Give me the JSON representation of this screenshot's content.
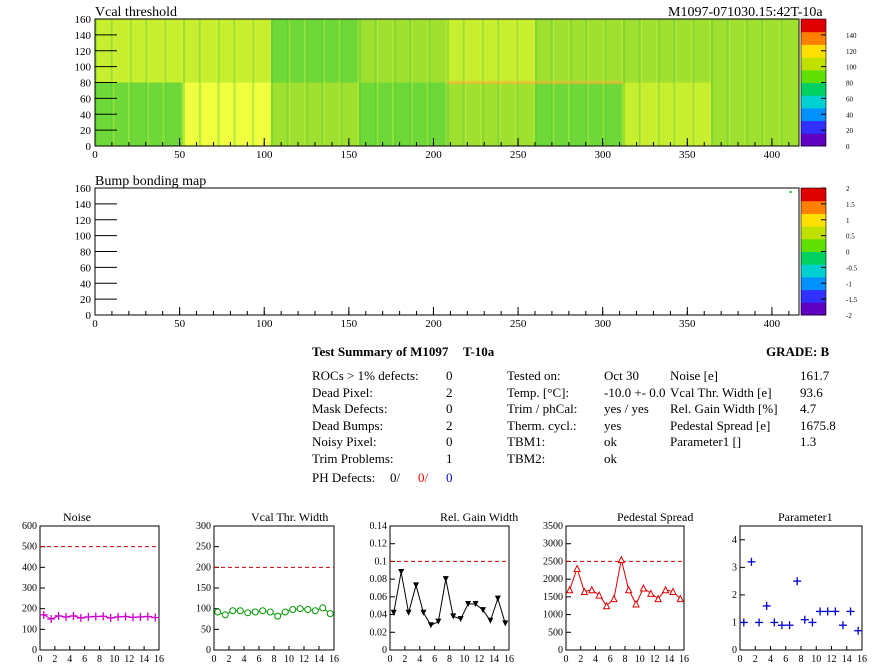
{
  "header": {
    "vcal_title": "Vcal threshold",
    "module_id": "M1097-071030.15:42T-10a",
    "bump_title": "Bump bonding map"
  },
  "colors": {
    "red": "#ff0000",
    "blue": "#0000cc",
    "noise": "#cc00cc",
    "vcal": "#009900",
    "gain": "#000000",
    "pedestal": "#dd0000",
    "param": "#0000cc",
    "ref_line": "#cc0000"
  },
  "summary": {
    "title": "Test Summary of M1097",
    "temp_label": "T-10a",
    "grade": "GRADE:  B",
    "left": [
      {
        "label": "ROCs > 1% defects:",
        "value": "0"
      },
      {
        "label": "Dead Pixel:",
        "value": "2"
      },
      {
        "label": "Mask Defects:",
        "value": "0"
      },
      {
        "label": "Dead Bumps:",
        "value": "2"
      },
      {
        "label": "Noisy Pixel:",
        "value": "0"
      },
      {
        "label": "Trim Problems:",
        "value": "1"
      }
    ],
    "ph_label": "PH Defects:",
    "ph_values": [
      "0/",
      "0/",
      "0"
    ],
    "middle": [
      {
        "label": "Tested on:",
        "value": "Oct 30"
      },
      {
        "label": "Temp. [°C]:",
        "value": "-10.0 +- 0.0"
      },
      {
        "label": "Trim / phCal:",
        "value": "yes / yes"
      },
      {
        "label": "Therm. cycl.:",
        "value": "yes"
      },
      {
        "label": "TBM1:",
        "value": "ok"
      },
      {
        "label": "TBM2:",
        "value": "ok"
      }
    ],
    "right": [
      {
        "label": "Noise [e]",
        "value": "161.7"
      },
      {
        "label": "Vcal Thr. Width [e]",
        "value": "93.6"
      },
      {
        "label": "Rel. Gain Width [%]",
        "value": "4.7"
      },
      {
        "label": "Pedestal Spread [e]",
        "value": "1675.8"
      },
      {
        "label": "Parameter1 []",
        "value": "1.3"
      }
    ]
  },
  "chart_data": [
    {
      "type": "heatmap",
      "title": "Vcal threshold",
      "xlim": [
        0,
        416
      ],
      "ylim": [
        0,
        160
      ],
      "xticks": [
        "0",
        "50",
        "100",
        "150",
        "200",
        "250",
        "300",
        "350",
        "400"
      ],
      "yticks": [
        "0",
        "20",
        "40",
        "60",
        "80",
        "100",
        "120",
        "140",
        "160"
      ],
      "colorbar": [
        "0",
        "20",
        "40",
        "60",
        "80",
        "100",
        "120",
        "140"
      ],
      "cells": [
        {
          "x": [
            0,
            52
          ],
          "y": [
            80,
            160
          ],
          "value": 108
        },
        {
          "x": [
            52,
            104
          ],
          "y": [
            80,
            160
          ],
          "value": 112
        },
        {
          "x": [
            104,
            156
          ],
          "y": [
            80,
            160
          ],
          "value": 95
        },
        {
          "x": [
            156,
            208
          ],
          "y": [
            80,
            160
          ],
          "value": 100
        },
        {
          "x": [
            208,
            260
          ],
          "y": [
            80,
            160
          ],
          "value": 110
        },
        {
          "x": [
            260,
            312
          ],
          "y": [
            80,
            160
          ],
          "value": 98
        },
        {
          "x": [
            312,
            364
          ],
          "y": [
            80,
            160
          ],
          "value": 104
        },
        {
          "x": [
            364,
            416
          ],
          "y": [
            80,
            160
          ],
          "value": 100
        },
        {
          "x": [
            0,
            52
          ],
          "y": [
            0,
            80
          ],
          "value": 96
        },
        {
          "x": [
            52,
            104
          ],
          "y": [
            0,
            80
          ],
          "value": 118
        },
        {
          "x": [
            104,
            156
          ],
          "y": [
            0,
            80
          ],
          "value": 104
        },
        {
          "x": [
            156,
            208
          ],
          "y": [
            0,
            80
          ],
          "value": 92
        },
        {
          "x": [
            208,
            260
          ],
          "y": [
            0,
            80
          ],
          "value": 104
        },
        {
          "x": [
            260,
            312
          ],
          "y": [
            0,
            80
          ],
          "value": 94
        },
        {
          "x": [
            312,
            364
          ],
          "y": [
            0,
            80
          ],
          "value": 110
        },
        {
          "x": [
            364,
            416
          ],
          "y": [
            0,
            80
          ],
          "value": 104
        }
      ]
    },
    {
      "type": "heatmap",
      "title": "Bump bonding map",
      "xlim": [
        0,
        416
      ],
      "ylim": [
        0,
        160
      ],
      "xticks": [
        "0",
        "50",
        "100",
        "150",
        "200",
        "250",
        "300",
        "350",
        "400"
      ],
      "yticks": [
        "0",
        "20",
        "40",
        "60",
        "80",
        "100",
        "120",
        "140",
        "160"
      ],
      "colorbar": [
        "-2",
        "-1.5",
        "-1",
        "-0.5",
        "0",
        "0.5",
        "1",
        "1.5",
        "2"
      ],
      "points": [
        {
          "x": 411,
          "y": 155,
          "value": 0
        }
      ]
    },
    {
      "type": "line",
      "title": "Noise",
      "marker": "cross",
      "x": [
        0,
        1,
        2,
        3,
        4,
        5,
        6,
        7,
        8,
        9,
        10,
        11,
        12,
        13,
        14,
        15
      ],
      "y": [
        170,
        150,
        165,
        160,
        165,
        155,
        160,
        162,
        163,
        155,
        160,
        162,
        158,
        160,
        162,
        157
      ],
      "xlim": [
        0,
        16
      ],
      "ylim": [
        0,
        600
      ],
      "ref": 500,
      "xticks": [
        "0",
        "2",
        "4",
        "6",
        "8",
        "10",
        "12",
        "14",
        "16"
      ],
      "yticks": [
        "0",
        "100",
        "200",
        "300",
        "400",
        "500",
        "600"
      ]
    },
    {
      "type": "line",
      "title": "Vcal Thr. Width",
      "marker": "circle",
      "x": [
        0,
        1,
        2,
        3,
        4,
        5,
        6,
        7,
        8,
        9,
        10,
        11,
        12,
        13,
        14,
        15
      ],
      "y": [
        92,
        85,
        95,
        95,
        90,
        92,
        95,
        92,
        82,
        92,
        98,
        100,
        98,
        95,
        102,
        88
      ],
      "xlim": [
        0,
        16
      ],
      "ylim": [
        0,
        300
      ],
      "ref": 200,
      "xticks": [
        "0",
        "2",
        "4",
        "6",
        "8",
        "10",
        "12",
        "14",
        "16"
      ],
      "yticks": [
        "0",
        "50",
        "100",
        "150",
        "200",
        "250",
        "300"
      ]
    },
    {
      "type": "line",
      "title": "Rel. Gain Width",
      "marker": "triangle-down",
      "x": [
        0,
        1,
        2,
        3,
        4,
        5,
        6,
        7,
        8,
        9,
        10,
        11,
        12,
        13,
        14,
        15
      ],
      "y": [
        0.042,
        0.088,
        0.042,
        0.073,
        0.042,
        0.028,
        0.032,
        0.08,
        0.038,
        0.035,
        0.052,
        0.052,
        0.045,
        0.033,
        0.058,
        0.03
      ],
      "xlim": [
        0,
        16
      ],
      "ylim": [
        0,
        0.14
      ],
      "ref": 0.1,
      "xticks": [
        "0",
        "2",
        "4",
        "6",
        "8",
        "10",
        "12",
        "14",
        "16"
      ],
      "yticks": [
        "0",
        "0.02",
        "0.04",
        "0.06",
        "0.08",
        "0.1",
        "0.12",
        "0.14"
      ]
    },
    {
      "type": "line",
      "title": "Pedestal Spread",
      "marker": "triangle-up",
      "x": [
        0,
        1,
        2,
        3,
        4,
        5,
        6,
        7,
        8,
        9,
        10,
        11,
        12,
        13,
        14,
        15
      ],
      "y": [
        1700,
        2300,
        1650,
        1700,
        1550,
        1250,
        1450,
        2550,
        1700,
        1300,
        1750,
        1600,
        1450,
        1700,
        1650,
        1450
      ],
      "xlim": [
        0,
        16
      ],
      "ylim": [
        0,
        3500
      ],
      "ref": 2500,
      "xticks": [
        "0",
        "2",
        "4",
        "6",
        "8",
        "10",
        "12",
        "14",
        "16"
      ],
      "yticks": [
        "0",
        "500",
        "1000",
        "1500",
        "2000",
        "2500",
        "3000",
        "3500"
      ]
    },
    {
      "type": "scatter",
      "title": "Parameter1",
      "marker": "cross",
      "x": [
        0,
        1,
        2,
        3,
        4,
        5,
        6,
        7,
        8,
        9,
        10,
        11,
        12,
        13,
        14,
        15
      ],
      "y": [
        1.0,
        3.2,
        1.0,
        1.6,
        1.0,
        0.9,
        0.9,
        2.5,
        1.1,
        1.0,
        1.4,
        1.4,
        1.4,
        0.9,
        1.4,
        0.7
      ],
      "xlim": [
        0,
        16
      ],
      "ylim": [
        0,
        4.5
      ],
      "ref": null,
      "xticks": [
        "0",
        "2",
        "4",
        "6",
        "8",
        "10",
        "12",
        "14",
        "16"
      ],
      "yticks": [
        "0",
        "1",
        "2",
        "3",
        "4"
      ]
    }
  ]
}
